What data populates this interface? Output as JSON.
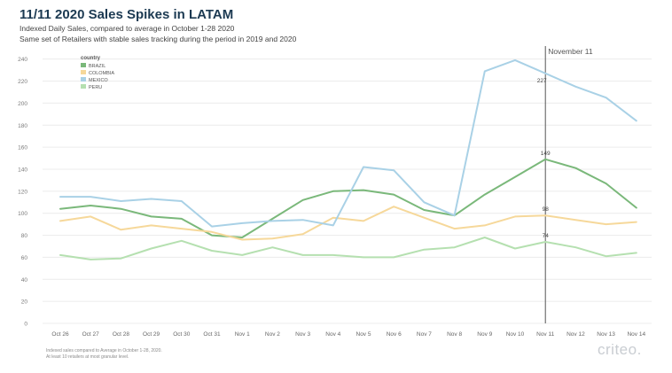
{
  "header": {
    "title": "11/11 2020 Sales Spikes in LATAM",
    "subtitle_1": "Indexed Daily Sales, compared to average in October 1-28 2020",
    "subtitle_2": "Same set of Retailers with stable sales tracking during the period in 2019 and 2020"
  },
  "footnote": {
    "line_1": "Indexed sales compared to Average in October 1-28, 2020.",
    "line_2": "At least 10 retailers at most granular level."
  },
  "logo": {
    "text": "criteo."
  },
  "chart_data": {
    "type": "line",
    "title": "11/11 2020 Sales Spikes in LATAM",
    "xlabel": "",
    "ylabel": "",
    "ylim": [
      0,
      240
    ],
    "yticks": [
      0,
      20,
      40,
      60,
      80,
      100,
      120,
      140,
      160,
      180,
      200,
      220,
      240
    ],
    "grid": true,
    "legend_title": "country",
    "legend_position": "top-left",
    "categories": [
      "Oct 26",
      "Oct 27",
      "Oct 28",
      "Oct 29",
      "Oct 30",
      "Oct 31",
      "Nov 1",
      "Nov 2",
      "Nov 3",
      "Nov 4",
      "Nov 5",
      "Nov 6",
      "Nov 7",
      "Nov 8",
      "Nov 9",
      "Nov 10",
      "Nov 11",
      "Nov 12",
      "Nov 13",
      "Nov 14"
    ],
    "series": [
      {
        "name": "BRAZIL",
        "color": "#7ab87a",
        "values": [
          104,
          107,
          104,
          97,
          95,
          80,
          78,
          95,
          112,
          120,
          121,
          117,
          103,
          98,
          117,
          133,
          149,
          141,
          127,
          105
        ]
      },
      {
        "name": "COLOMBIA",
        "color": "#f6d89a",
        "values": [
          93,
          97,
          85,
          89,
          86,
          83,
          76,
          77,
          81,
          96,
          93,
          106,
          96,
          86,
          89,
          97,
          98,
          94,
          90,
          92
        ]
      },
      {
        "name": "MEXICO",
        "color": "#a9d1e6",
        "values": [
          115,
          115,
          111,
          113,
          111,
          88,
          91,
          93,
          94,
          89,
          142,
          139,
          110,
          98,
          229,
          239,
          227,
          215,
          205,
          184
        ]
      },
      {
        "name": "PERU",
        "color": "#b5e0b0",
        "values": [
          62,
          58,
          59,
          68,
          75,
          66,
          62,
          69,
          62,
          62,
          60,
          60,
          67,
          69,
          78,
          68,
          74,
          69,
          61,
          64
        ]
      }
    ],
    "annotations": [
      {
        "label": "November 11",
        "x": "Nov 11",
        "type": "vertical-line"
      },
      {
        "label": "227",
        "x": "Nov 11",
        "series": "MEXICO"
      },
      {
        "label": "149",
        "x": "Nov 11",
        "series": "BRAZIL"
      },
      {
        "label": "98",
        "x": "Nov 11",
        "series": "COLOMBIA"
      },
      {
        "label": "74",
        "x": "Nov 11",
        "series": "PERU"
      }
    ]
  }
}
